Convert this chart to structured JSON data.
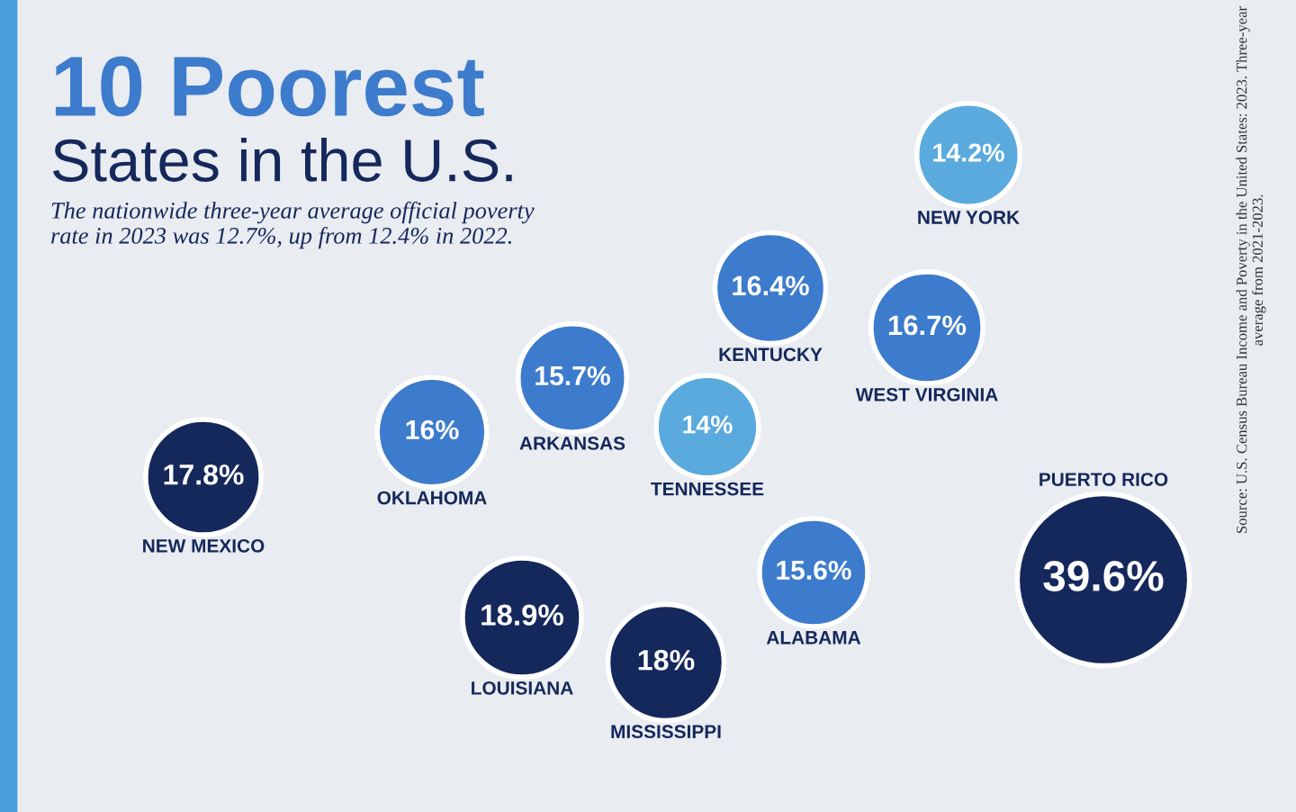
{
  "chart_data": {
    "type": "other",
    "title": "10 Poorest\nStates in the U.S.",
    "subtitle": "The nationwide three-year average official poverty\nrate in 2023 was 12.7%, up from 12.4% in 2022.",
    "categories": [
      "NEW YORK",
      "KENTUCKY",
      "WEST VIRGINIA",
      "OKLAHOMA",
      "ARKANSAS",
      "TENNESSEE",
      "NEW MEXICO",
      "ALABAMA",
      "PUERTO RICO",
      "LOUISIANA",
      "MISSISSIPPI"
    ],
    "values": [
      14.2,
      16.4,
      16.7,
      16,
      15.7,
      14,
      17.8,
      15.6,
      39.6,
      18.9,
      18
    ],
    "value_labels": [
      "14.2%",
      "16.4%",
      "16.7%",
      "16%",
      "15.7%",
      "14%",
      "17.8%",
      "15.6%",
      "39.6%",
      "18.9%",
      "18%"
    ],
    "colors": [
      "#5aaade",
      "#3d7bcc",
      "#3d7bcc",
      "#3d7bcc",
      "#3d7bcc",
      "#5aaade",
      "#15285c",
      "#3d7bcc",
      "#15285c",
      "#15285c",
      "#15285c"
    ],
    "annotations": [
      "Source: U.S. Census Bureau Income and Poverty in the United States: 2023. Three-year average from 2021-2023."
    ]
  }
}
